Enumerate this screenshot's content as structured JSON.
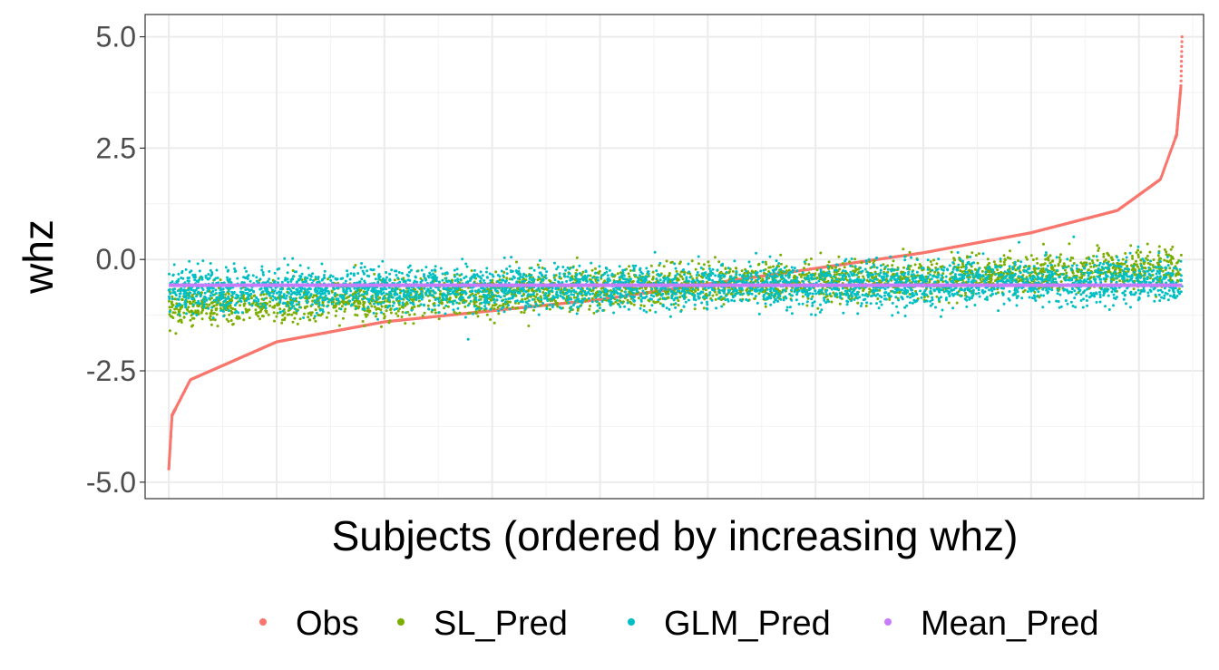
{
  "chart_data": {
    "type": "scatter",
    "title": "",
    "xlabel": "Subjects (ordered by increasing whz)",
    "ylabel": "whz",
    "ylim": [
      -5.0,
      5.0
    ],
    "xlim": [
      -220,
      9600
    ],
    "yticks": [
      -5.0,
      -2.5,
      0.0,
      2.5,
      5.0
    ],
    "ytick_labels": [
      "-5.0",
      "-2.5",
      "0.0",
      "2.5",
      "5.0"
    ],
    "xtick_labels_shown": false,
    "grid": true,
    "legend_position": "bottom",
    "n_subjects": 9400,
    "series": [
      {
        "name": "Obs",
        "color": "#F8766D",
        "description_of_shape": "sorted observed whz values, rising from about -4.7 to about 5.0",
        "key_points": [
          {
            "x": 0,
            "y": -4.7
          },
          {
            "x": 30,
            "y": -3.5
          },
          {
            "x": 200,
            "y": -2.7
          },
          {
            "x": 1000,
            "y": -1.85
          },
          {
            "x": 2000,
            "y": -1.4
          },
          {
            "x": 3000,
            "y": -1.15
          },
          {
            "x": 4000,
            "y": -0.9
          },
          {
            "x": 5000,
            "y": -0.55
          },
          {
            "x": 6000,
            "y": -0.2
          },
          {
            "x": 7000,
            "y": 0.15
          },
          {
            "x": 8000,
            "y": 0.6
          },
          {
            "x": 8800,
            "y": 1.1
          },
          {
            "x": 9200,
            "y": 1.8
          },
          {
            "x": 9350,
            "y": 2.8
          },
          {
            "x": 9390,
            "y": 3.9
          },
          {
            "x": 9400,
            "y": 5.0
          }
        ]
      },
      {
        "name": "SL_Pred",
        "color": "#7CAE00",
        "description_of_shape": "predictions trending from about -1.1 at left to about -0.2 at right, spread about ±0.3",
        "trend": [
          {
            "x": 0,
            "y": -1.1
          },
          {
            "x": 4700,
            "y": -0.6
          },
          {
            "x": 9400,
            "y": -0.2
          }
        ]
      },
      {
        "name": "GLM_Pred",
        "color": "#00BFC4",
        "description_of_shape": "predictions scattered around about -0.6 across all subjects, spread about ±0.4",
        "trend": [
          {
            "x": 0,
            "y": -0.7
          },
          {
            "x": 4700,
            "y": -0.6
          },
          {
            "x": 9400,
            "y": -0.5
          }
        ]
      },
      {
        "name": "Mean_Pred",
        "color": "#C77CFF",
        "description_of_shape": "constant mean prediction",
        "value": -0.58
      }
    ]
  }
}
